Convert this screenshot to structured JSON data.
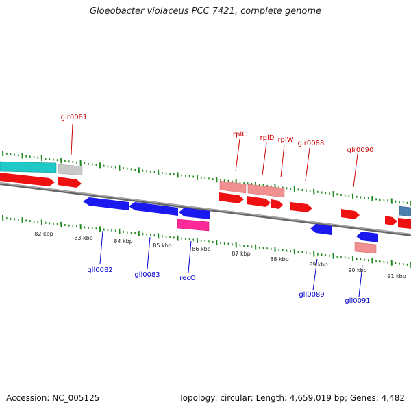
{
  "header": {
    "title": "Gloeobacter violaceus PCC 7421, complete genome"
  },
  "footer": {
    "accession": "Accession: NC_005125",
    "stats": "Topology: circular; Length: 4,659,019 bp; Genes: 4,482"
  },
  "colors": {
    "backbone": "#888888",
    "tick": "#1f8a1f",
    "forward_cds": "#ee1111",
    "reverse_cds": "#1a1aee",
    "forward_label": "#cc0000",
    "reverse_label": "#0000cc",
    "rrna": "#f09090",
    "trna": "#ff2a9a",
    "other": "#20c8c8",
    "misc": "#c0c0c0",
    "steelblue": "#4a7fb0"
  },
  "ticks": {
    "kbp_labels": [
      "82 kbp",
      "83 kbp",
      "84 kbp",
      "85 kbp",
      "86 kbp",
      "87 kbp",
      "88 kbp",
      "89 kbp",
      "90 kbp",
      "91 kbp"
    ]
  },
  "gene_labels": {
    "forward": [
      "glr0081",
      "rplC",
      "rplD",
      "rplW",
      "glr0088",
      "glr0090"
    ],
    "reverse": [
      "gll0082",
      "gll0083",
      "recO",
      "gll0089",
      "gll0091"
    ]
  }
}
